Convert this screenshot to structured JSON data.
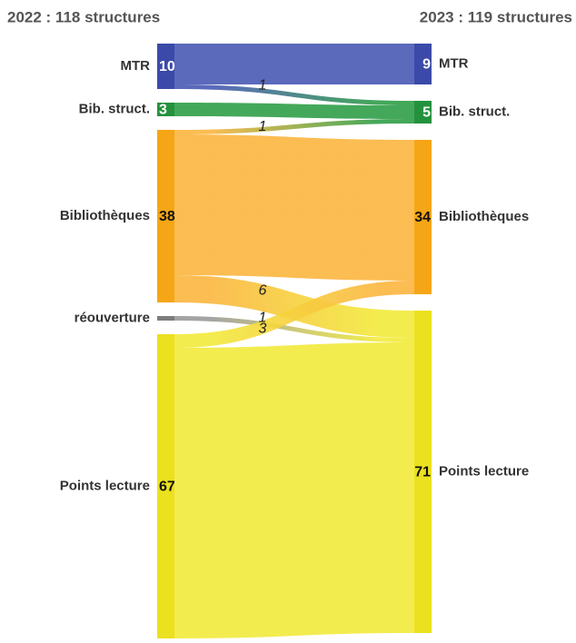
{
  "chart_data": {
    "type": "sankey",
    "left_title": "2022 : 118 structures",
    "right_title": "2023 : 119 structures",
    "left_nodes": [
      {
        "name": "MTR",
        "value": 10,
        "color": "#3b4aa8"
      },
      {
        "name": "Bib. struct.",
        "value": 3,
        "color": "#24923d"
      },
      {
        "name": "Bibliothèques",
        "value": 38,
        "color": "#f5a617"
      },
      {
        "name": "réouverture",
        "color": "#7d7d7d"
      },
      {
        "name": "Points lecture",
        "value": 67,
        "color": "#ebe11f"
      }
    ],
    "right_nodes": [
      {
        "name": "MTR",
        "value": 9,
        "color": "#3b4aa8"
      },
      {
        "name": "Bib. struct.",
        "value": 5,
        "color": "#24923d"
      },
      {
        "name": "Bibliothèques",
        "value": 34,
        "color": "#f5a617"
      },
      {
        "name": "Points lecture",
        "value": 71,
        "color": "#ebe11f"
      }
    ],
    "links": [
      {
        "source": 0,
        "target": 0,
        "value": 9
      },
      {
        "source": 0,
        "target": 1,
        "value": 1
      },
      {
        "source": 1,
        "target": 1,
        "value": 3
      },
      {
        "source": 2,
        "target": 1,
        "value": 1
      },
      {
        "source": 2,
        "target": 2,
        "value": 31
      },
      {
        "source": 2,
        "target": 3,
        "value": 6
      },
      {
        "source": 3,
        "target": 3,
        "value": 1
      },
      {
        "source": 4,
        "target": 2,
        "value": 3
      },
      {
        "source": 4,
        "target": 3,
        "value": 64
      }
    ],
    "link_colors": [
      "#4a5ab5",
      "#2f9e48",
      "#fbb63f",
      "#9a9a9a",
      "#f2ea3c"
    ]
  }
}
